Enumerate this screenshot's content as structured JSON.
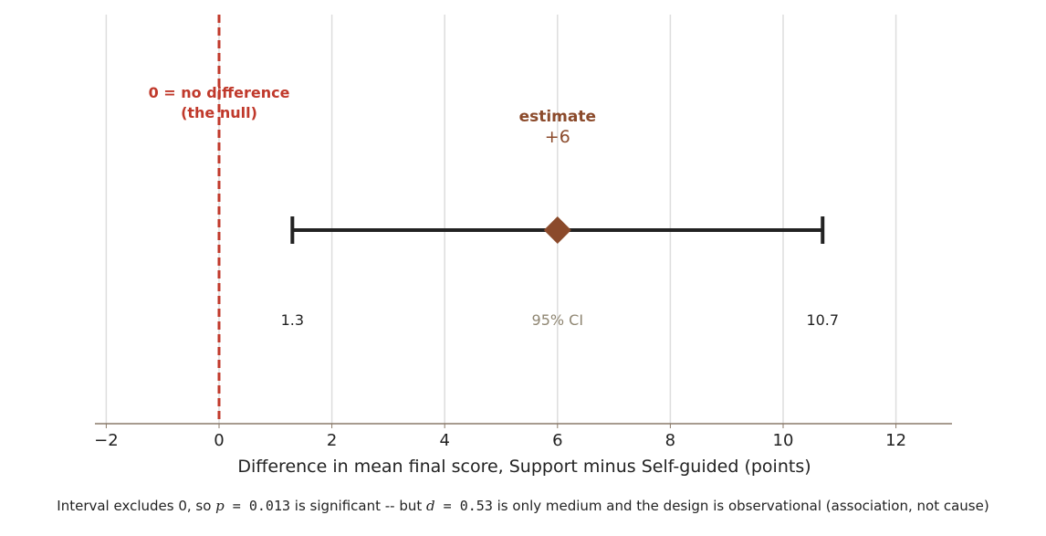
{
  "chart_data": {
    "type": "forest",
    "xlabel": "Difference in mean final score, Support minus Self-guided (points)",
    "xlim": [
      -2.5,
      13
    ],
    "xticks": [
      -2,
      0,
      2,
      4,
      6,
      8,
      10,
      12
    ],
    "xtick_labels": [
      "−2",
      "0",
      "2",
      "4",
      "6",
      "8",
      "10",
      "12"
    ],
    "grid": "vertical",
    "reference_line": {
      "x": 0,
      "label_line1": "0 = no difference",
      "label_line2": "(the null)"
    },
    "estimate": {
      "value": 6,
      "title": "estimate",
      "value_label": "+6"
    },
    "interval": {
      "low": 1.3,
      "high": 10.7,
      "low_label": "1.3",
      "high_label": "10.7",
      "label": "95% CI"
    },
    "colors": {
      "null": "#c0392b",
      "estimate": "#8b4a2b",
      "interval": "#222222",
      "grid": "#dddddd",
      "axis": "#8a7a6a",
      "ci_label": "#8f8672"
    }
  },
  "caption": {
    "text_1": "Interval excludes 0, so ",
    "p_symbol": "p",
    "p_value": " = 0.013",
    "text_2": " is significant -- but ",
    "d_symbol": "d",
    "d_value": " = 0.53",
    "text_3": " is only medium and the design is observational (association, not cause)"
  }
}
